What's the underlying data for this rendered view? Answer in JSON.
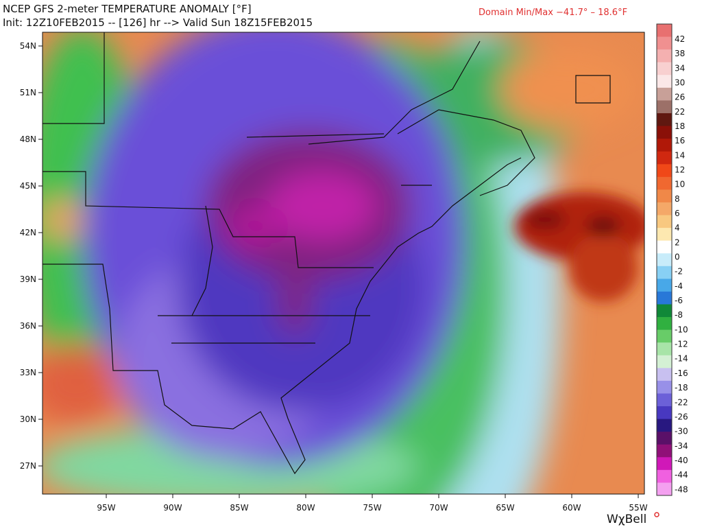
{
  "header": {
    "title": "NCEP GFS 2-meter TEMPERATURE ANOMALY [°F]",
    "subtitle": "Init: 12Z10FEB2015 -- [126] hr --> Valid Sun 18Z15FEB2015",
    "domain_minmax": "Domain Min/Max −41.7° –  18.6°F"
  },
  "map": {
    "lat_labels": [
      "54N",
      "51N",
      "48N",
      "45N",
      "42N",
      "39N",
      "36N",
      "33N",
      "30N",
      "27N"
    ],
    "lon_labels": [
      "95W",
      "90W",
      "85W",
      "80W",
      "75W",
      "70W",
      "65W",
      "60W",
      "55W"
    ]
  },
  "colorbar": {
    "labels": [
      42,
      38,
      34,
      30,
      26,
      22,
      18,
      16,
      14,
      12,
      10,
      8,
      6,
      4,
      2,
      0,
      -2,
      -4,
      -6,
      -8,
      -10,
      -12,
      -14,
      -16,
      -18,
      -22,
      -26,
      -30,
      -34,
      -40,
      -44,
      -48
    ]
  },
  "logo": "WχBell"
}
